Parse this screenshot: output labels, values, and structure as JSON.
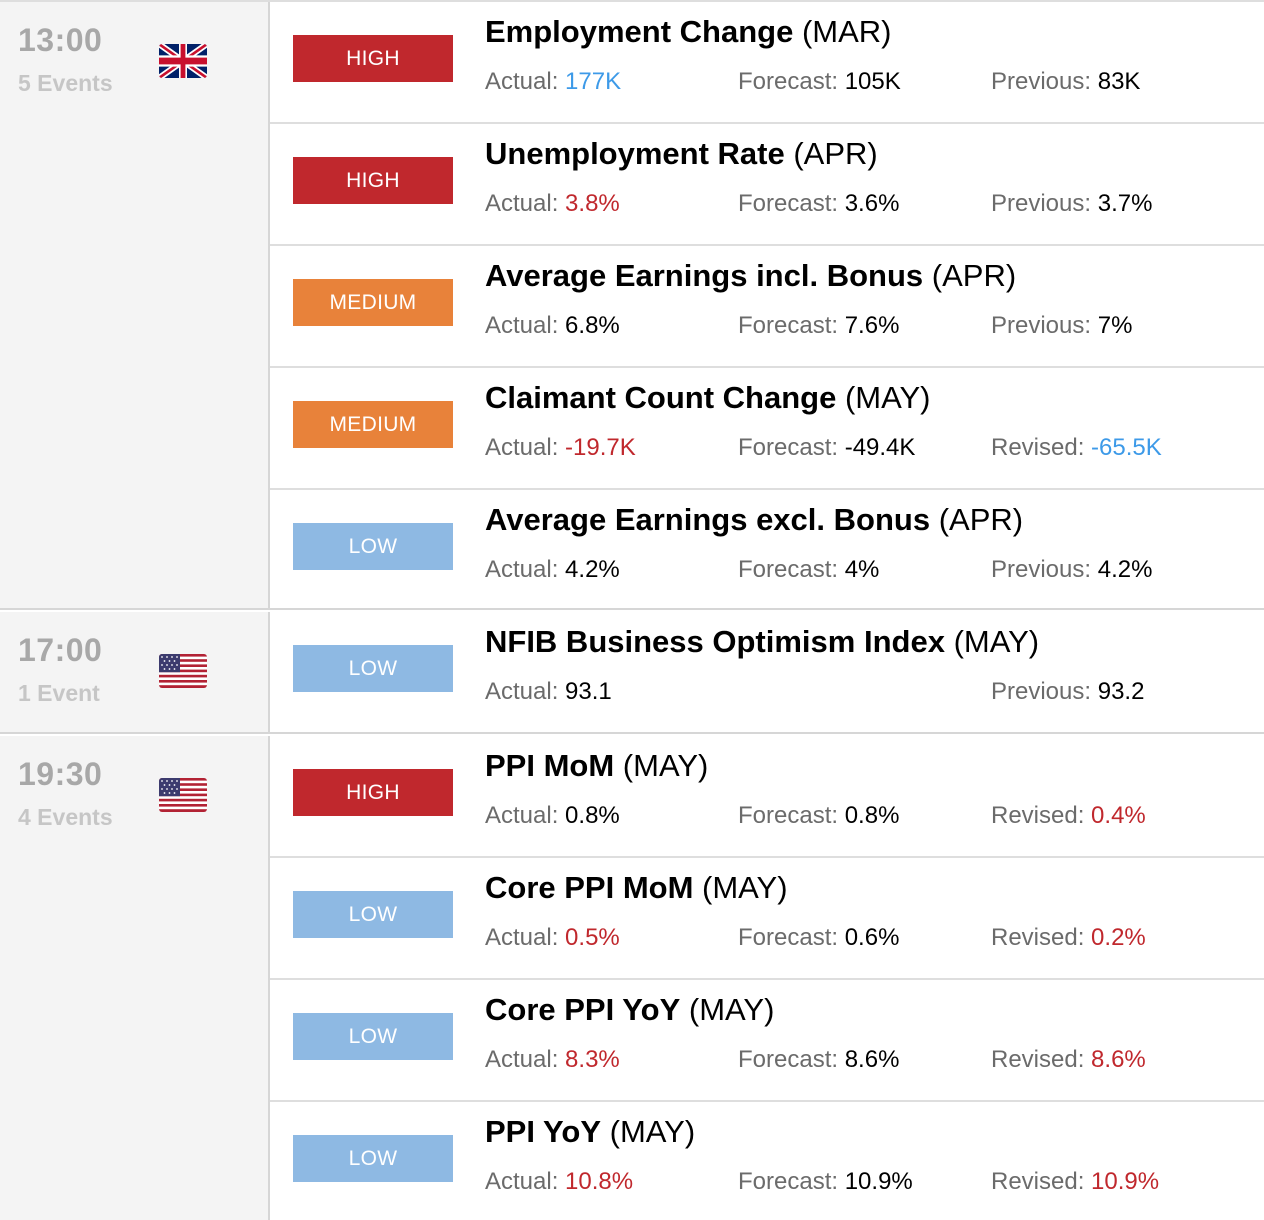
{
  "groups": [
    {
      "time": "13:00",
      "count": "5 Events",
      "flag": "uk-flag-icon",
      "events": [
        {
          "impact": "HIGH",
          "impact_class": "high",
          "name": "Employment Change",
          "period": "(MAR)",
          "actual_label": "Actual:",
          "actual": "177K",
          "actual_color": "#3d9ae8",
          "forecast_label": "Forecast:",
          "forecast": "105K",
          "previous_label": "Previous:",
          "previous": "83K",
          "previous_color": "#000000"
        },
        {
          "impact": "HIGH",
          "impact_class": "high",
          "name": "Unemployment Rate",
          "period": "(APR)",
          "actual_label": "Actual:",
          "actual": "3.8%",
          "actual_color": "#c0282d",
          "forecast_label": "Forecast:",
          "forecast": "3.6%",
          "previous_label": "Previous:",
          "previous": "3.7%",
          "previous_color": "#000000"
        },
        {
          "impact": "MEDIUM",
          "impact_class": "medium",
          "name": "Average Earnings incl. Bonus",
          "period": "(APR)",
          "actual_label": "Actual:",
          "actual": "6.8%",
          "actual_color": "#000000",
          "forecast_label": "Forecast:",
          "forecast": "7.6%",
          "previous_label": "Previous:",
          "previous": "7%",
          "previous_color": "#000000"
        },
        {
          "impact": "MEDIUM",
          "impact_class": "medium",
          "name": "Claimant Count Change",
          "period": "(MAY)",
          "actual_label": "Actual:",
          "actual": "-19.7K",
          "actual_color": "#c0282d",
          "forecast_label": "Forecast:",
          "forecast": "-49.4K",
          "previous_label": "Revised:",
          "previous": "-65.5K",
          "previous_color": "#3d9ae8"
        },
        {
          "impact": "LOW",
          "impact_class": "low",
          "name": "Average Earnings excl. Bonus",
          "period": "(APR)",
          "actual_label": "Actual:",
          "actual": "4.2%",
          "actual_color": "#000000",
          "forecast_label": "Forecast:",
          "forecast": "4%",
          "previous_label": "Previous:",
          "previous": "4.2%",
          "previous_color": "#000000"
        }
      ]
    },
    {
      "time": "17:00",
      "count": "1 Event",
      "flag": "us-flag-icon",
      "events": [
        {
          "impact": "LOW",
          "impact_class": "low",
          "name": "NFIB Business Optimism Index",
          "period": "(MAY)",
          "actual_label": "Actual:",
          "actual": "93.1",
          "actual_color": "#000000",
          "forecast_label": "",
          "forecast": "",
          "previous_label": "Previous:",
          "previous": "93.2",
          "previous_color": "#000000"
        }
      ]
    },
    {
      "time": "19:30",
      "count": "4 Events",
      "flag": "us-flag-icon",
      "events": [
        {
          "impact": "HIGH",
          "impact_class": "high",
          "name": "PPI MoM",
          "period": "(MAY)",
          "actual_label": "Actual:",
          "actual": "0.8%",
          "actual_color": "#000000",
          "forecast_label": "Forecast:",
          "forecast": "0.8%",
          "previous_label": "Revised:",
          "previous": "0.4%",
          "previous_color": "#c0282d"
        },
        {
          "impact": "LOW",
          "impact_class": "low",
          "name": "Core PPI MoM",
          "period": "(MAY)",
          "actual_label": "Actual:",
          "actual": "0.5%",
          "actual_color": "#c0282d",
          "forecast_label": "Forecast:",
          "forecast": "0.6%",
          "previous_label": "Revised:",
          "previous": "0.2%",
          "previous_color": "#c0282d"
        },
        {
          "impact": "LOW",
          "impact_class": "low",
          "name": "Core PPI YoY",
          "period": "(MAY)",
          "actual_label": "Actual:",
          "actual": "8.3%",
          "actual_color": "#c0282d",
          "forecast_label": "Forecast:",
          "forecast": "8.6%",
          "previous_label": "Revised:",
          "previous": "8.6%",
          "previous_color": "#c0282d"
        },
        {
          "impact": "LOW",
          "impact_class": "low",
          "name": "PPI YoY",
          "period": "(MAY)",
          "actual_label": "Actual:",
          "actual": "10.8%",
          "actual_color": "#c0282d",
          "forecast_label": "Forecast:",
          "forecast": "10.9%",
          "previous_label": "Revised:",
          "previous": "10.9%",
          "previous_color": "#c0282d"
        }
      ]
    }
  ]
}
